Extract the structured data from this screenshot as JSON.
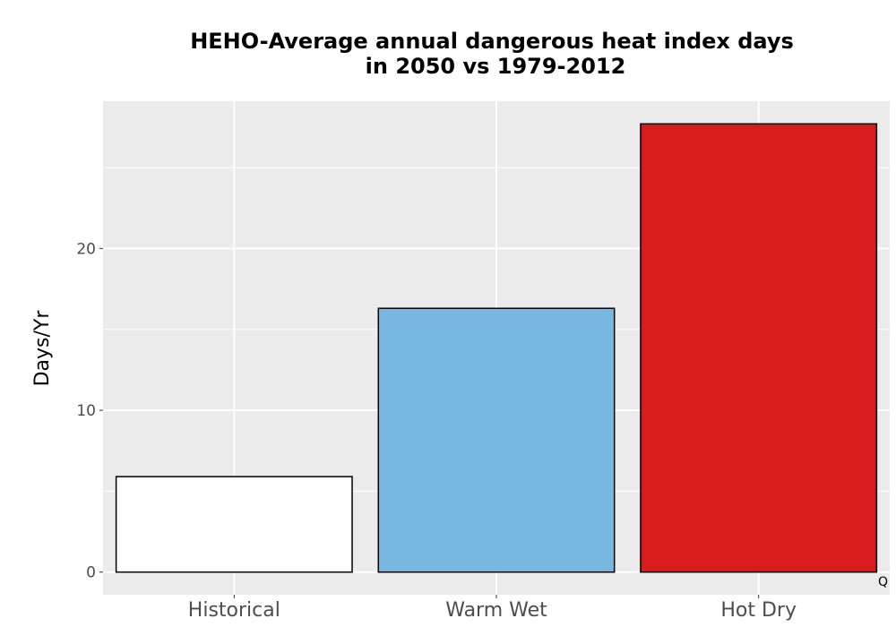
{
  "chart_data": {
    "type": "bar",
    "title_lines": [
      "HEHO-Average annual dangerous heat index days",
      "in 2050 vs 1979-2012"
    ],
    "xlabel": "",
    "ylabel": "Days/Yr",
    "categories": [
      "Historical",
      "Warm Wet",
      "Hot Dry"
    ],
    "values": [
      5.9,
      16.3,
      27.7
    ],
    "bar_colors": [
      "#ffffff",
      "#78b8e0",
      "#d81b1c"
    ],
    "bar_outline_color": "#000000",
    "panel_background": "#ebebeb",
    "gridline_color": "#ffffff",
    "yticks": [
      0,
      10,
      20
    ],
    "ylim": [
      -1.4,
      29.1
    ],
    "grid": true,
    "legend": "none",
    "corner_mark": "Q"
  }
}
